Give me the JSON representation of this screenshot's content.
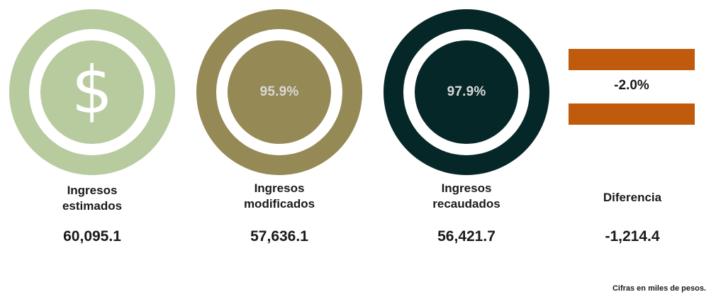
{
  "colors": {
    "estimados": "#b7cb9f",
    "modificados": "#958955",
    "recaudados": "#062727",
    "diferencia": "#c05a0c",
    "pct_text_light": "#d9d9d9"
  },
  "cards": [
    {
      "icon": "dollar-sign-icon",
      "glyph": "$",
      "label_line1": "Ingresos",
      "label_line2": "estimados",
      "value": "60,095.1"
    },
    {
      "percent": "95.9%",
      "label_line1": "Ingresos",
      "label_line2": "modificados",
      "value": "57,636.1"
    },
    {
      "percent": "97.9%",
      "label_line1": "Ingresos",
      "label_line2": "recaudados",
      "value": "56,421.7"
    },
    {
      "percent": "-2.0%",
      "label": "Diferencia",
      "value": "-1,214.4"
    }
  ],
  "note": "Cifras en miles de pesos."
}
